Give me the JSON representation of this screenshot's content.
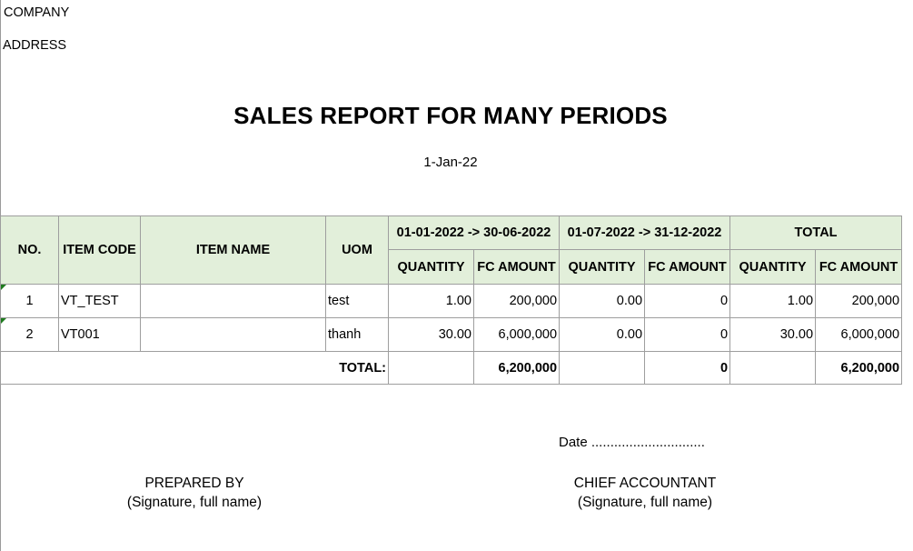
{
  "header": {
    "company": "COMPANY",
    "address": "ADDRESS",
    "title": "SALES REPORT FOR MANY PERIODS",
    "report_date": "1-Jan-22"
  },
  "table": {
    "columns": {
      "no": "NO.",
      "item_code": "ITEM CODE",
      "item_name": "ITEM NAME",
      "uom": "UOM",
      "period1": "01-01-2022 -> 30-06-2022",
      "period2": "01-07-2022 -> 31-12-2022",
      "total": "TOTAL",
      "quantity": "QUANTITY",
      "fc_amount": "FC AMOUNT"
    },
    "rows": [
      {
        "no": "1",
        "item_code": "VT_TEST",
        "item_name": "",
        "uom": "test",
        "p1_qty": "1.00",
        "p1_amount": "200,000",
        "p2_qty": "0.00",
        "p2_amount": "0",
        "total_qty": "1.00",
        "total_amount": "200,000"
      },
      {
        "no": "2",
        "item_code": "VT001",
        "item_name": "",
        "uom": "thanh",
        "p1_qty": "30.00",
        "p1_amount": "6,000,000",
        "p2_qty": "0.00",
        "p2_amount": "0",
        "total_qty": "30.00",
        "total_amount": "6,000,000"
      }
    ],
    "totals": {
      "label": "TOTAL:",
      "p1_qty": "",
      "p1_amount": "6,200,000",
      "p2_qty": "",
      "p2_amount": "0",
      "total_qty": "",
      "total_amount": "6,200,000"
    }
  },
  "footer": {
    "date_line": "Date ..............................",
    "prepared_by": "PREPARED BY",
    "prepared_sig": "(Signature, full name)",
    "chief_accountant": "CHIEF ACCOUNTANT",
    "chief_sig": "(Signature, full name)"
  },
  "colors": {
    "header_fill": "#e2efda",
    "border": "#9e9e9e",
    "cell_marker": "#1e7b1e"
  }
}
